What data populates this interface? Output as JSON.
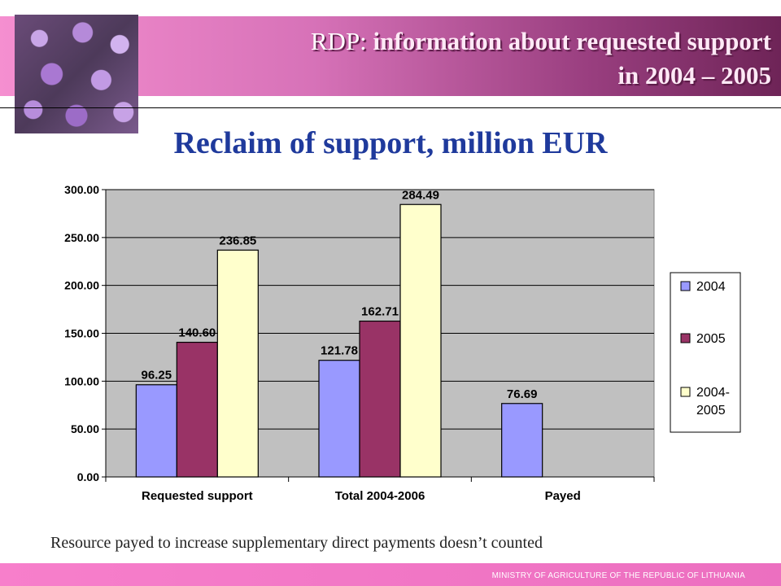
{
  "header": {
    "title_prefix": "RDP:",
    "title_strong_line1": "information about requested support",
    "title_line2": "in 2004 – 2005",
    "photo_description_icon": "hydrangea-photo"
  },
  "footnote": "Resource payed to increase supplementary direct payments doesn’t counted",
  "footer": {
    "ministry": "MINISTRY OF AGRICULTURE OF THE REPUBLIC OF LITHUANIA"
  },
  "colors": {
    "s2004": "#9999ff",
    "s2005": "#993366",
    "s2004_2005": "#ffffcc",
    "plot_bg": "#c0c0c0"
  },
  "chart_data": {
    "type": "bar",
    "title": "Reclaim of support, million EUR",
    "categories": [
      "Requested support",
      "Total 2004-2006",
      "Payed"
    ],
    "series": [
      {
        "name": "2004",
        "values": [
          96.25,
          121.78,
          76.69
        ]
      },
      {
        "name": "2005",
        "values": [
          140.6,
          162.71,
          null
        ]
      },
      {
        "name": "2004-2005",
        "legend_lines": [
          "2004-",
          "2005"
        ],
        "values": [
          236.85,
          284.49,
          null
        ]
      }
    ],
    "ylim": [
      0,
      300
    ],
    "yticks": [
      "0.00",
      "50.00",
      "100.00",
      "150.00",
      "200.00",
      "250.00",
      "300.00"
    ],
    "grid": true,
    "legend_position": "right"
  }
}
